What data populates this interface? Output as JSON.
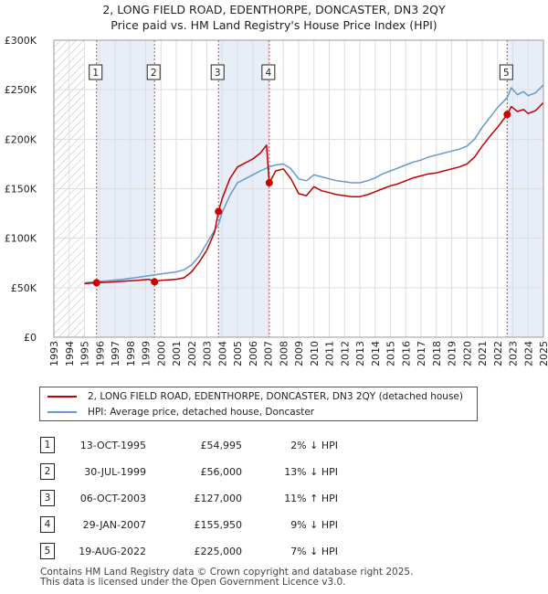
{
  "title_line1": "2, LONG FIELD ROAD, EDENTHORPE, DONCASTER, DN3 2QY",
  "title_line2": "Price paid vs. HM Land Registry's House Price Index (HPI)",
  "chart_data": {
    "type": "line",
    "xlim": [
      1993,
      2025
    ],
    "ylim": [
      0,
      300000
    ],
    "y_ticks": [
      0,
      50000,
      100000,
      150000,
      200000,
      250000,
      300000
    ],
    "y_tick_labels": [
      "£0",
      "£50K",
      "£100K",
      "£150K",
      "£200K",
      "£250K",
      "£300K"
    ],
    "x_ticks": [
      1993,
      1994,
      1995,
      1996,
      1997,
      1998,
      1999,
      2000,
      2001,
      2002,
      2003,
      2004,
      2005,
      2006,
      2007,
      2008,
      2009,
      2010,
      2011,
      2012,
      2013,
      2014,
      2015,
      2016,
      2017,
      2018,
      2019,
      2020,
      2021,
      2022,
      2023,
      2024,
      2025
    ],
    "grid": true,
    "hatched_regions": [
      [
        1993,
        1995.0
      ]
    ],
    "shaded_regions": [
      [
        1995.79,
        1999.58
      ],
      [
        2003.76,
        2007.08
      ],
      [
        2022.63,
        2025.0
      ]
    ],
    "series": [
      {
        "name": "2, LONG FIELD ROAD, EDENTHORPE, DONCASTER, DN3 2QY (detached house)",
        "color": "#c00000",
        "points": [
          [
            1995.0,
            54000
          ],
          [
            1995.79,
            54995
          ],
          [
            1996.5,
            55500
          ],
          [
            1997.5,
            56500
          ],
          [
            1998.5,
            57500
          ],
          [
            1999.2,
            58500
          ],
          [
            1999.58,
            56000
          ],
          [
            2000.0,
            57500
          ],
          [
            2000.5,
            58000
          ],
          [
            2001.0,
            58500
          ],
          [
            2001.5,
            60000
          ],
          [
            2002.0,
            66000
          ],
          [
            2002.5,
            76000
          ],
          [
            2003.0,
            88000
          ],
          [
            2003.5,
            106000
          ],
          [
            2003.76,
            127000
          ],
          [
            2004.0,
            140000
          ],
          [
            2004.5,
            160000
          ],
          [
            2005.0,
            172000
          ],
          [
            2005.5,
            176000
          ],
          [
            2006.0,
            180000
          ],
          [
            2006.5,
            186000
          ],
          [
            2006.9,
            194000
          ],
          [
            2007.08,
            155950
          ],
          [
            2007.5,
            168000
          ],
          [
            2008.0,
            170000
          ],
          [
            2008.5,
            160000
          ],
          [
            2009.0,
            145000
          ],
          [
            2009.5,
            143000
          ],
          [
            2010.0,
            152000
          ],
          [
            2010.5,
            148000
          ],
          [
            2011.0,
            146000
          ],
          [
            2011.5,
            144000
          ],
          [
            2012.0,
            143000
          ],
          [
            2012.5,
            142000
          ],
          [
            2013.0,
            142000
          ],
          [
            2013.5,
            144000
          ],
          [
            2014.0,
            147000
          ],
          [
            2014.5,
            150000
          ],
          [
            2015.0,
            153000
          ],
          [
            2015.5,
            155000
          ],
          [
            2016.0,
            158000
          ],
          [
            2016.5,
            161000
          ],
          [
            2017.0,
            163000
          ],
          [
            2017.5,
            165000
          ],
          [
            2018.0,
            166000
          ],
          [
            2018.5,
            168000
          ],
          [
            2019.0,
            170000
          ],
          [
            2019.5,
            172000
          ],
          [
            2020.0,
            175000
          ],
          [
            2020.5,
            182000
          ],
          [
            2021.0,
            193000
          ],
          [
            2021.5,
            203000
          ],
          [
            2022.0,
            212000
          ],
          [
            2022.63,
            225000
          ],
          [
            2022.9,
            233000
          ],
          [
            2023.3,
            228000
          ],
          [
            2023.7,
            230000
          ],
          [
            2024.0,
            226000
          ],
          [
            2024.5,
            229000
          ],
          [
            2025.0,
            237000
          ]
        ]
      },
      {
        "name": "HPI: Average price, detached house, Doncaster",
        "color": "#6699cc",
        "points": [
          [
            1995.0,
            55000
          ],
          [
            1995.79,
            56000
          ],
          [
            1996.5,
            57000
          ],
          [
            1997.5,
            58500
          ],
          [
            1998.5,
            60500
          ],
          [
            1999.58,
            63000
          ],
          [
            2000.0,
            64000
          ],
          [
            2000.5,
            65000
          ],
          [
            2001.0,
            66000
          ],
          [
            2001.5,
            68000
          ],
          [
            2002.0,
            73000
          ],
          [
            2002.5,
            82000
          ],
          [
            2003.0,
            95000
          ],
          [
            2003.5,
            108000
          ],
          [
            2003.76,
            114000
          ],
          [
            2004.0,
            126000
          ],
          [
            2004.5,
            143000
          ],
          [
            2005.0,
            156000
          ],
          [
            2005.5,
            160000
          ],
          [
            2006.0,
            164000
          ],
          [
            2006.5,
            168000
          ],
          [
            2007.08,
            172000
          ],
          [
            2007.5,
            174000
          ],
          [
            2008.0,
            175000
          ],
          [
            2008.5,
            170000
          ],
          [
            2009.0,
            160000
          ],
          [
            2009.5,
            158000
          ],
          [
            2010.0,
            164000
          ],
          [
            2010.5,
            162000
          ],
          [
            2011.0,
            160000
          ],
          [
            2011.5,
            158000
          ],
          [
            2012.0,
            157000
          ],
          [
            2012.5,
            156000
          ],
          [
            2013.0,
            156000
          ],
          [
            2013.5,
            158000
          ],
          [
            2014.0,
            161000
          ],
          [
            2014.5,
            165000
          ],
          [
            2015.0,
            168000
          ],
          [
            2015.5,
            171000
          ],
          [
            2016.0,
            174000
          ],
          [
            2016.5,
            177000
          ],
          [
            2017.0,
            179000
          ],
          [
            2017.5,
            182000
          ],
          [
            2018.0,
            184000
          ],
          [
            2018.5,
            186000
          ],
          [
            2019.0,
            188000
          ],
          [
            2019.5,
            190000
          ],
          [
            2020.0,
            193000
          ],
          [
            2020.5,
            200000
          ],
          [
            2021.0,
            212000
          ],
          [
            2021.5,
            222000
          ],
          [
            2022.0,
            232000
          ],
          [
            2022.63,
            242000
          ],
          [
            2022.9,
            252000
          ],
          [
            2023.3,
            245000
          ],
          [
            2023.7,
            248000
          ],
          [
            2024.0,
            244000
          ],
          [
            2024.5,
            247000
          ],
          [
            2025.0,
            255000
          ]
        ]
      }
    ],
    "sales_markers": [
      {
        "id": "1",
        "year": 1995.79,
        "price": 54995
      },
      {
        "id": "2",
        "year": 1999.58,
        "price": 56000
      },
      {
        "id": "3",
        "year": 2003.76,
        "price": 127000
      },
      {
        "id": "4",
        "year": 2007.08,
        "price": 155950
      },
      {
        "id": "5",
        "year": 2022.63,
        "price": 225000
      }
    ]
  },
  "legend": {
    "property": "2, LONG FIELD ROAD, EDENTHORPE, DONCASTER, DN3 2QY (detached house)",
    "hpi": "HPI: Average price, detached house, Doncaster"
  },
  "sales": [
    {
      "num": "1",
      "date": "13-OCT-1995",
      "price": "£54,995",
      "hpi": "2% ↓ HPI"
    },
    {
      "num": "2",
      "date": "30-JUL-1999",
      "price": "£56,000",
      "hpi": "13% ↓ HPI"
    },
    {
      "num": "3",
      "date": "06-OCT-2003",
      "price": "£127,000",
      "hpi": "11% ↑ HPI"
    },
    {
      "num": "4",
      "date": "29-JAN-2007",
      "price": "£155,950",
      "hpi": "9% ↓ HPI"
    },
    {
      "num": "5",
      "date": "19-AUG-2022",
      "price": "£225,000",
      "hpi": "7% ↓ HPI"
    }
  ],
  "footer": {
    "line1": "Contains HM Land Registry data © Crown copyright and database right 2025.",
    "line2": "This data is licensed under the Open Government Licence v3.0."
  }
}
